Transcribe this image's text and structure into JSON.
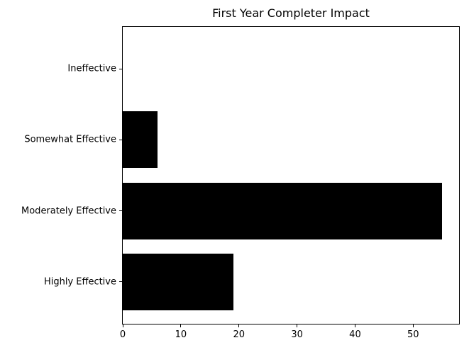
{
  "figure": {
    "background": "#ffffff"
  },
  "chart_data": {
    "type": "bar",
    "orientation": "horizontal",
    "title": "First Year Completer Impact",
    "categories": [
      "Ineffective",
      "Somewhat Effective",
      "Moderately Effective",
      "Highly Effective"
    ],
    "values": [
      0,
      6,
      55,
      19
    ],
    "xticks": [
      0,
      10,
      20,
      30,
      40,
      50
    ],
    "xlim": [
      0,
      57.9
    ],
    "xlabel": "",
    "ylabel": "",
    "grid": false,
    "legend": false,
    "bar_color": "#000000",
    "text_color": "#000000"
  }
}
